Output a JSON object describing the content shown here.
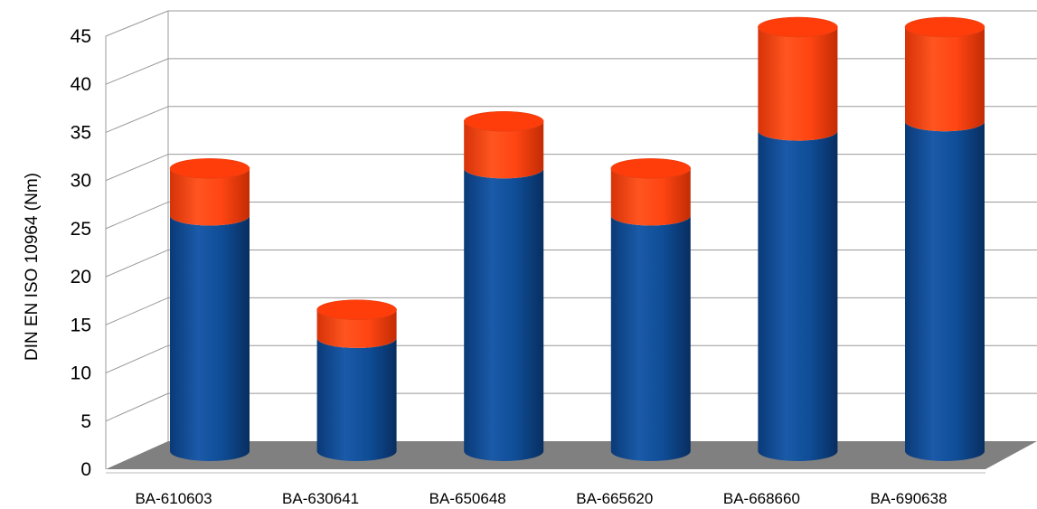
{
  "chart_data": {
    "type": "bar",
    "stacked": true,
    "style": "3d-cylinder",
    "categories": [
      "BA-610603",
      "BA-630641",
      "BA-650648",
      "BA-665620",
      "BA-668660",
      "BA-690638"
    ],
    "series": [
      {
        "color": "#0f4d97",
        "values": [
          25,
          12,
          30,
          25,
          34,
          35
        ]
      },
      {
        "color": "#ff4512",
        "values": [
          5,
          3,
          5,
          5,
          11,
          10
        ]
      }
    ],
    "totals": [
      30,
      15,
      35,
      30,
      45,
      45
    ],
    "title": "",
    "xlabel": "",
    "ylabel": "DIN EN ISO 10964 (Nm)",
    "ylim": [
      0,
      45
    ],
    "yticks": [
      0,
      5,
      10,
      15,
      20,
      25,
      30,
      35,
      40,
      45
    ],
    "grid": true,
    "floor_color": "#808080"
  }
}
